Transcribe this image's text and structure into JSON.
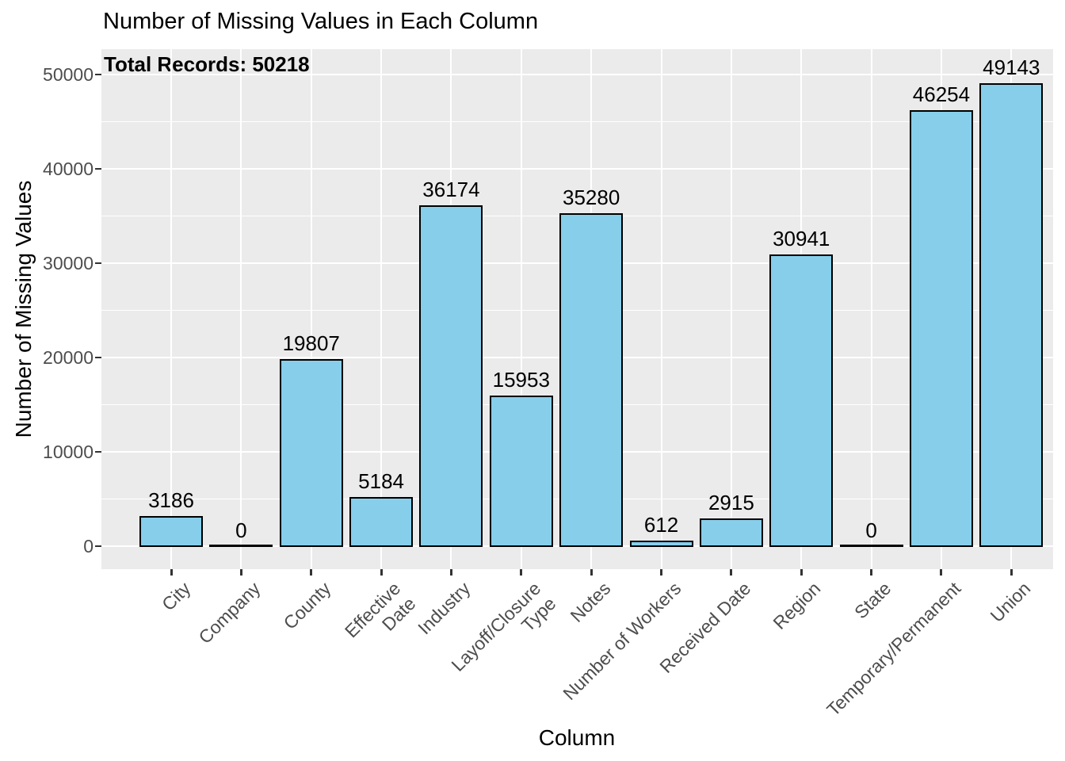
{
  "chart_data": {
    "type": "bar",
    "title": "Number of Missing Values in Each Column",
    "annotation": "Total Records: 50218",
    "xlabel": "Column",
    "ylabel": "Number of Missing Values",
    "categories": [
      "City",
      "Company",
      "County",
      "Effective\nDate",
      "Industry",
      "Layoff/Closure\nType",
      "Notes",
      "Number of Workers",
      "Received Date",
      "Region",
      "State",
      "Temporary/Permanent",
      "Union"
    ],
    "values": [
      3186,
      0,
      19807,
      5184,
      36174,
      15953,
      35280,
      612,
      2915,
      30941,
      0,
      46254,
      49143
    ],
    "yticks": [
      0,
      10000,
      20000,
      30000,
      40000,
      50000
    ],
    "ytick_labels": [
      "0",
      "10000",
      "20000",
      "30000",
      "40000",
      "50000"
    ],
    "minor_step": 5000,
    "ylim": [
      -2450,
      52700
    ],
    "grid": true,
    "legend": false,
    "colors": {
      "bar_fill": "#87CEEB",
      "bar_edge": "#000000",
      "panel_bg": "#EBEBEB",
      "grid": "#FFFFFF",
      "tick_text": "#4D4D4D",
      "tick_mark": "#333333",
      "text": "#000000"
    }
  }
}
